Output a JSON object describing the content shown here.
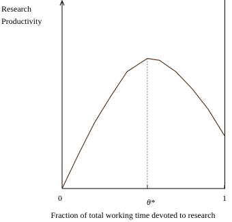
{
  "chart_data": {
    "type": "line",
    "y_label": [
      "Research",
      "Productivity"
    ],
    "x_label": "Fraction of total working time devoted to research",
    "x": [
      0,
      0.1,
      0.2,
      0.3,
      0.4,
      0.525,
      0.6,
      0.7,
      0.8,
      0.9,
      1
    ],
    "series": [
      {
        "color": "#4a2a10",
        "values": [
          0,
          0.18,
          0.35,
          0.49,
          0.62,
          0.69,
          0.68,
          0.62,
          0.53,
          0.42,
          0.28
        ]
      }
    ],
    "xlim": [
      0,
      1
    ],
    "ylim": [
      0,
      1
    ],
    "xticks": [
      0,
      {
        "value": 0.525,
        "label": "θ*"
      },
      1
    ]
  }
}
